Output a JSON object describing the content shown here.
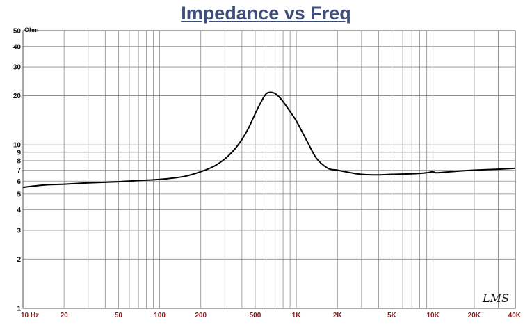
{
  "chart_data": {
    "type": "line",
    "title": "Impedance vs Freq",
    "y_unit_label": "Ohm",
    "x_scale": "log",
    "y_scale": "log",
    "xlim": [
      10,
      40000
    ],
    "ylim": [
      1,
      50
    ],
    "grid": true,
    "x_ticks": [
      {
        "value": 10,
        "label": "10  Hz"
      },
      {
        "value": 20,
        "label": "20"
      },
      {
        "value": 50,
        "label": "50"
      },
      {
        "value": 100,
        "label": "100"
      },
      {
        "value": 200,
        "label": "200"
      },
      {
        "value": 500,
        "label": "500"
      },
      {
        "value": 1000,
        "label": "1K"
      },
      {
        "value": 2000,
        "label": "2K"
      },
      {
        "value": 5000,
        "label": "5K"
      },
      {
        "value": 10000,
        "label": "10K"
      },
      {
        "value": 20000,
        "label": "20K"
      },
      {
        "value": 40000,
        "label": "40K"
      }
    ],
    "y_ticks": [
      {
        "value": 1,
        "label": "1"
      },
      {
        "value": 2,
        "label": "2"
      },
      {
        "value": 3,
        "label": "3"
      },
      {
        "value": 4,
        "label": "4"
      },
      {
        "value": 5,
        "label": "5"
      },
      {
        "value": 6,
        "label": "6"
      },
      {
        "value": 7,
        "label": "7"
      },
      {
        "value": 8,
        "label": "8"
      },
      {
        "value": 9,
        "label": "9"
      },
      {
        "value": 10,
        "label": "10"
      },
      {
        "value": 20,
        "label": "20"
      },
      {
        "value": 30,
        "label": "30"
      },
      {
        "value": 40,
        "label": "40"
      },
      {
        "value": 50,
        "label": "50"
      }
    ],
    "series": [
      {
        "color": "#000000",
        "x": [
          10,
          12,
          15,
          20,
          30,
          50,
          70,
          100,
          150,
          200,
          250,
          300,
          350,
          400,
          450,
          500,
          550,
          600,
          650,
          700,
          750,
          800,
          900,
          1000,
          1200,
          1400,
          1700,
          2000,
          2500,
          3000,
          4000,
          5000,
          7000,
          9000,
          10000,
          10500,
          12000,
          15000,
          20000,
          30000,
          40000
        ],
        "y": [
          5.5,
          5.6,
          5.7,
          5.75,
          5.85,
          5.95,
          6.05,
          6.15,
          6.4,
          6.85,
          7.4,
          8.2,
          9.3,
          10.8,
          12.8,
          15.5,
          18.2,
          20.5,
          21.0,
          20.6,
          19.6,
          18.4,
          16.0,
          14.0,
          10.5,
          8.3,
          7.2,
          7.0,
          6.75,
          6.6,
          6.55,
          6.6,
          6.65,
          6.75,
          6.85,
          6.75,
          6.8,
          6.9,
          7.0,
          7.1,
          7.2
        ]
      }
    ]
  },
  "watermark": "LMS"
}
